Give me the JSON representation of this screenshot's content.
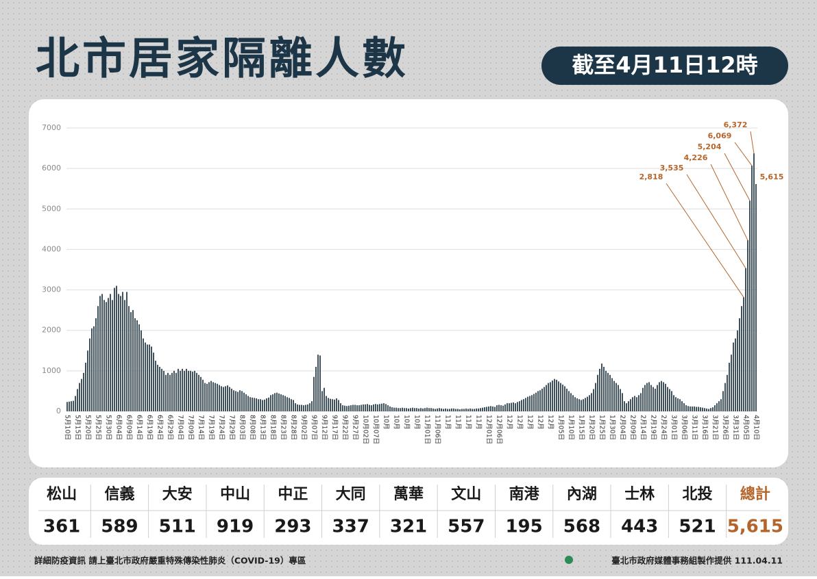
{
  "header": {
    "title": "北市居家隔離人數",
    "badge": "截至4月11日12時"
  },
  "chart_data": {
    "type": "bar",
    "color": "#3f505d",
    "label_color": "#b5652a",
    "grid": true,
    "ylim": [
      0,
      7000
    ],
    "yticks": [
      0,
      1000,
      2000,
      3000,
      4000,
      5000,
      6000,
      7000
    ],
    "categories": [
      "5月10日",
      null,
      null,
      null,
      null,
      "5月15日",
      null,
      null,
      null,
      null,
      "5月20日",
      null,
      null,
      null,
      null,
      "5月25日",
      null,
      null,
      null,
      null,
      "5月30日",
      null,
      null,
      null,
      null,
      "6月04日",
      null,
      null,
      null,
      null,
      "6月09日",
      null,
      null,
      null,
      null,
      "6月14日",
      null,
      null,
      null,
      null,
      "6月19日",
      null,
      null,
      null,
      null,
      "6月24日",
      null,
      null,
      null,
      null,
      "6月29日",
      null,
      null,
      null,
      null,
      "7月04日",
      null,
      null,
      null,
      null,
      "7月09日",
      null,
      null,
      null,
      null,
      "7月14日",
      null,
      null,
      null,
      null,
      "7月19日",
      null,
      null,
      null,
      null,
      "7月24日",
      null,
      null,
      null,
      null,
      "7月29日",
      null,
      null,
      null,
      null,
      "8月03日",
      null,
      null,
      null,
      null,
      "8月08日",
      null,
      null,
      null,
      null,
      "8月13日",
      null,
      null,
      null,
      null,
      "8月18日",
      null,
      null,
      null,
      null,
      "8月23日",
      null,
      null,
      null,
      null,
      "8月28日",
      null,
      null,
      null,
      null,
      "9月02日",
      null,
      null,
      null,
      null,
      "9月07日",
      null,
      null,
      null,
      null,
      "9月12日",
      null,
      null,
      null,
      null,
      "9月17日",
      null,
      null,
      null,
      null,
      "9月22日",
      null,
      null,
      null,
      null,
      "9月27日",
      null,
      null,
      null,
      null,
      "10月02日",
      null,
      null,
      null,
      null,
      "10月07日",
      null,
      null,
      null,
      null,
      "10月",
      null,
      null,
      null,
      null,
      "10月",
      null,
      null,
      null,
      null,
      "10月",
      null,
      null,
      null,
      null,
      "10月",
      null,
      null,
      null,
      null,
      "11月01日",
      null,
      null,
      null,
      null,
      "11月06日",
      null,
      null,
      null,
      null,
      "11月",
      null,
      null,
      null,
      null,
      "11月",
      null,
      null,
      null,
      null,
      "11月",
      null,
      null,
      null,
      null,
      "11月",
      null,
      null,
      null,
      null,
      "12月01日",
      null,
      null,
      null,
      null,
      "12月06日",
      null,
      null,
      null,
      null,
      "12月",
      null,
      null,
      null,
      null,
      "12月",
      null,
      null,
      null,
      null,
      "12月",
      null,
      null,
      null,
      null,
      "12月",
      null,
      null,
      null,
      null,
      "12月",
      null,
      null,
      null,
      null,
      "1月05日",
      null,
      null,
      null,
      null,
      "1月10日",
      null,
      null,
      null,
      null,
      "1月15日",
      null,
      null,
      null,
      null,
      "1月20日",
      null,
      null,
      null,
      null,
      "1月25日",
      null,
      null,
      null,
      null,
      "1月30日",
      null,
      null,
      null,
      null,
      "2月04日",
      null,
      null,
      null,
      null,
      "2月09日",
      null,
      null,
      null,
      null,
      "2月14日",
      null,
      null,
      null,
      null,
      "2月19日",
      null,
      null,
      null,
      null,
      "2月24日",
      null,
      null,
      null,
      null,
      "3月01日",
      null,
      null,
      null,
      null,
      "3月06日",
      null,
      null,
      null,
      null,
      "3月11日",
      null,
      null,
      null,
      null,
      "3月16日",
      null,
      null,
      null,
      null,
      "3月21日",
      null,
      null,
      null,
      null,
      "3月26日",
      null,
      null,
      null,
      null,
      "3月31日",
      null,
      null,
      null,
      null,
      "4月05日",
      null,
      null,
      null,
      null,
      "4月10日"
    ],
    "values": [
      230,
      240,
      250,
      260,
      380,
      550,
      700,
      800,
      950,
      1200,
      1500,
      1800,
      2050,
      2100,
      2300,
      2600,
      2850,
      2900,
      2750,
      2700,
      2800,
      2900,
      2750,
      3050,
      3100,
      2900,
      2850,
      2950,
      2750,
      2950,
      2600,
      2450,
      2500,
      2300,
      2250,
      2150,
      2000,
      1800,
      1700,
      1650,
      1650,
      1600,
      1450,
      1250,
      1150,
      1100,
      1050,
      1000,
      900,
      950,
      900,
      950,
      1000,
      950,
      1050,
      1000,
      1050,
      1000,
      1050,
      1000,
      1000,
      980,
      1000,
      950,
      900,
      850,
      780,
      700,
      680,
      720,
      750,
      720,
      700,
      680,
      650,
      620,
      600,
      620,
      640,
      600,
      560,
      520,
      500,
      480,
      520,
      500,
      460,
      420,
      380,
      350,
      340,
      330,
      320,
      300,
      300,
      280,
      290,
      320,
      340,
      400,
      420,
      450,
      460,
      440,
      420,
      400,
      380,
      350,
      330,
      300,
      280,
      200,
      170,
      160,
      160,
      150,
      160,
      170,
      200,
      250,
      850,
      1100,
      1400,
      1380,
      500,
      580,
      380,
      330,
      310,
      300,
      290,
      320,
      280,
      200,
      150,
      140,
      130,
      140,
      150,
      160,
      160,
      150,
      150,
      160,
      170,
      170,
      180,
      160,
      150,
      170,
      180,
      170,
      180,
      190,
      200,
      180,
      150,
      120,
      100,
      90,
      90,
      80,
      80,
      90,
      80,
      80,
      70,
      80,
      90,
      80,
      80,
      70,
      80,
      70,
      80,
      90,
      80,
      80,
      70,
      60,
      70,
      80,
      70,
      60,
      70,
      60,
      60,
      70,
      70,
      60,
      60,
      50,
      60,
      60,
      70,
      60,
      70,
      60,
      60,
      70,
      70,
      80,
      90,
      100,
      110,
      120,
      130,
      120,
      110,
      150,
      160,
      150,
      140,
      170,
      200,
      200,
      210,
      220,
      200,
      230,
      250,
      280,
      300,
      330,
      360,
      380,
      400,
      430,
      460,
      500,
      520,
      560,
      600,
      650,
      700,
      720,
      760,
      800,
      780,
      740,
      700,
      660,
      620,
      560,
      500,
      450,
      400,
      350,
      320,
      300,
      280,
      300,
      330,
      360,
      400,
      450,
      550,
      700,
      900,
      1050,
      1180,
      1100,
      1000,
      950,
      900,
      820,
      750,
      700,
      650,
      550,
      450,
      250,
      200,
      250,
      300,
      350,
      380,
      350,
      400,
      450,
      580,
      650,
      700,
      720,
      650,
      600,
      560,
      650,
      720,
      750,
      720,
      680,
      600,
      550,
      500,
      400,
      350,
      320,
      300,
      250,
      200,
      150,
      130,
      120,
      120,
      120,
      110,
      110,
      100,
      90,
      80,
      70,
      60,
      80,
      100,
      150,
      200,
      250,
      300,
      500,
      700,
      900,
      1200,
      1400,
      1700,
      1800,
      2000,
      2300,
      2600,
      2818,
      3535,
      4226,
      5204,
      6069,
      6372,
      5615
    ],
    "value_labels": [
      null,
      null,
      null,
      null,
      null,
      null,
      null,
      null,
      null,
      null,
      null,
      null,
      null,
      null,
      null,
      null,
      null,
      null,
      null,
      null,
      null,
      null,
      null,
      null,
      null,
      null,
      null,
      null,
      null,
      null,
      null,
      null,
      null,
      null,
      null,
      null,
      null,
      null,
      null,
      null,
      null,
      null,
      null,
      null,
      null,
      null,
      null,
      null,
      null,
      null,
      null,
      null,
      null,
      null,
      null,
      null,
      null,
      null,
      null,
      null,
      null,
      null,
      null,
      null,
      null,
      null,
      null,
      null,
      null,
      null,
      null,
      null,
      null,
      null,
      null,
      null,
      null,
      null,
      null,
      null,
      null,
      null,
      null,
      null,
      null,
      null,
      null,
      null,
      null,
      null,
      null,
      null,
      null,
      null,
      null,
      null,
      null,
      null,
      null,
      null,
      null,
      null,
      null,
      null,
      null,
      null,
      null,
      null,
      null,
      null,
      null,
      null,
      null,
      null,
      null,
      null,
      null,
      null,
      null,
      null,
      null,
      null,
      null,
      null,
      null,
      null,
      null,
      null,
      null,
      null,
      null,
      null,
      null,
      null,
      null,
      null,
      null,
      null,
      null,
      null,
      null,
      null,
      null,
      null,
      null,
      null,
      null,
      null,
      null,
      null,
      null,
      null,
      null,
      null,
      null,
      null,
      null,
      null,
      null,
      null,
      null,
      null,
      null,
      null,
      null,
      null,
      null,
      null,
      null,
      null,
      null,
      null,
      null,
      null,
      null,
      null,
      null,
      null,
      null,
      null,
      null,
      null,
      null,
      null,
      null,
      null,
      null,
      null,
      null,
      null,
      null,
      null,
      null,
      null,
      null,
      null,
      null,
      null,
      null,
      null,
      null,
      null,
      null,
      null,
      null,
      null,
      null,
      null,
      null,
      null,
      null,
      null,
      null,
      null,
      null,
      null,
      null,
      null,
      null,
      null,
      null,
      null,
      null,
      null,
      null,
      null,
      null,
      null,
      null,
      null,
      null,
      null,
      null,
      null,
      null,
      null,
      null,
      null,
      null,
      null,
      null,
      null,
      null,
      null,
      null,
      null,
      null,
      null,
      null,
      null,
      null,
      null,
      null,
      null,
      null,
      null,
      null,
      null,
      null,
      null,
      null,
      null,
      null,
      null,
      null,
      null,
      null,
      null,
      null,
      null,
      null,
      null,
      null,
      null,
      null,
      null,
      null,
      null,
      null,
      null,
      null,
      null,
      null,
      null,
      null,
      null,
      null,
      null,
      null,
      null,
      null,
      null,
      null,
      null,
      null,
      null,
      null,
      null,
      null,
      null,
      null,
      null,
      null,
      null,
      null,
      null,
      null,
      null,
      null,
      null,
      null,
      null,
      null,
      null,
      null,
      null,
      null,
      null,
      null,
      null,
      null,
      null,
      null,
      null,
      null,
      null,
      null,
      null,
      null,
      "2,818",
      "3,535",
      "4,226",
      "5,204",
      "6,069",
      "6,372",
      "5,615"
    ]
  },
  "table": {
    "headers": [
      "松山",
      "信義",
      "大安",
      "中山",
      "中正",
      "大同",
      "萬華",
      "文山",
      "南港",
      "內湖",
      "士林",
      "北投",
      "總計"
    ],
    "rows": [
      [
        "361",
        "589",
        "511",
        "919",
        "293",
        "337",
        "321",
        "557",
        "195",
        "568",
        "443",
        "521",
        "5,615"
      ]
    ]
  },
  "footer": {
    "left": "詳細防疫資訊 請上臺北市政府嚴重特殊傳染性肺炎（COVID-19）專區",
    "right": "臺北市政府媒體事務組製作提供 111.04.11"
  }
}
